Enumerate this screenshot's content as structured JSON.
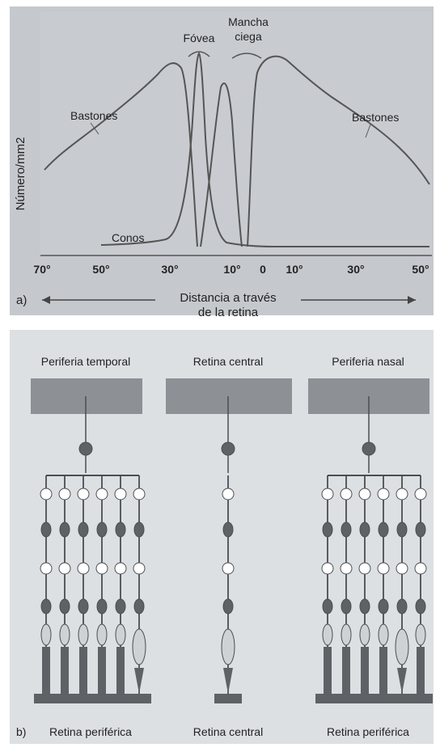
{
  "colors": {
    "background": "#ffffff",
    "panel_a_bg": "#c5c9ce",
    "panel_b_bg": "#dde0e3",
    "curve": "#555555",
    "neuron_fill": "#5e6266",
    "block": "#8d9196",
    "text": "#222222"
  },
  "panel_a": {
    "y_axis_label": "Número/mm2",
    "peak_labels": {
      "fovea": "Fóvea",
      "blind_spot_line1": "Mancha",
      "blind_spot_line2": "ciega"
    },
    "curve_labels": {
      "rods_left": "Bastones",
      "rods_right": "Bastones",
      "cones": "Conos"
    },
    "x_ticks": [
      "70°",
      "50°",
      "30°",
      "10°",
      "0",
      "10°",
      "30°",
      "50°"
    ],
    "panel_letter": "a)",
    "x_axis_label_line1": "Distancia a través",
    "x_axis_label_line2": "de la retina"
  },
  "panel_b": {
    "columns": [
      {
        "title": "Periferia temporal",
        "caption": "Retina periférica"
      },
      {
        "title": "Retina central",
        "caption": "Retina central"
      },
      {
        "title": "Periferia nasal",
        "caption": "Retina periférica"
      }
    ],
    "panel_letter": "b)"
  }
}
